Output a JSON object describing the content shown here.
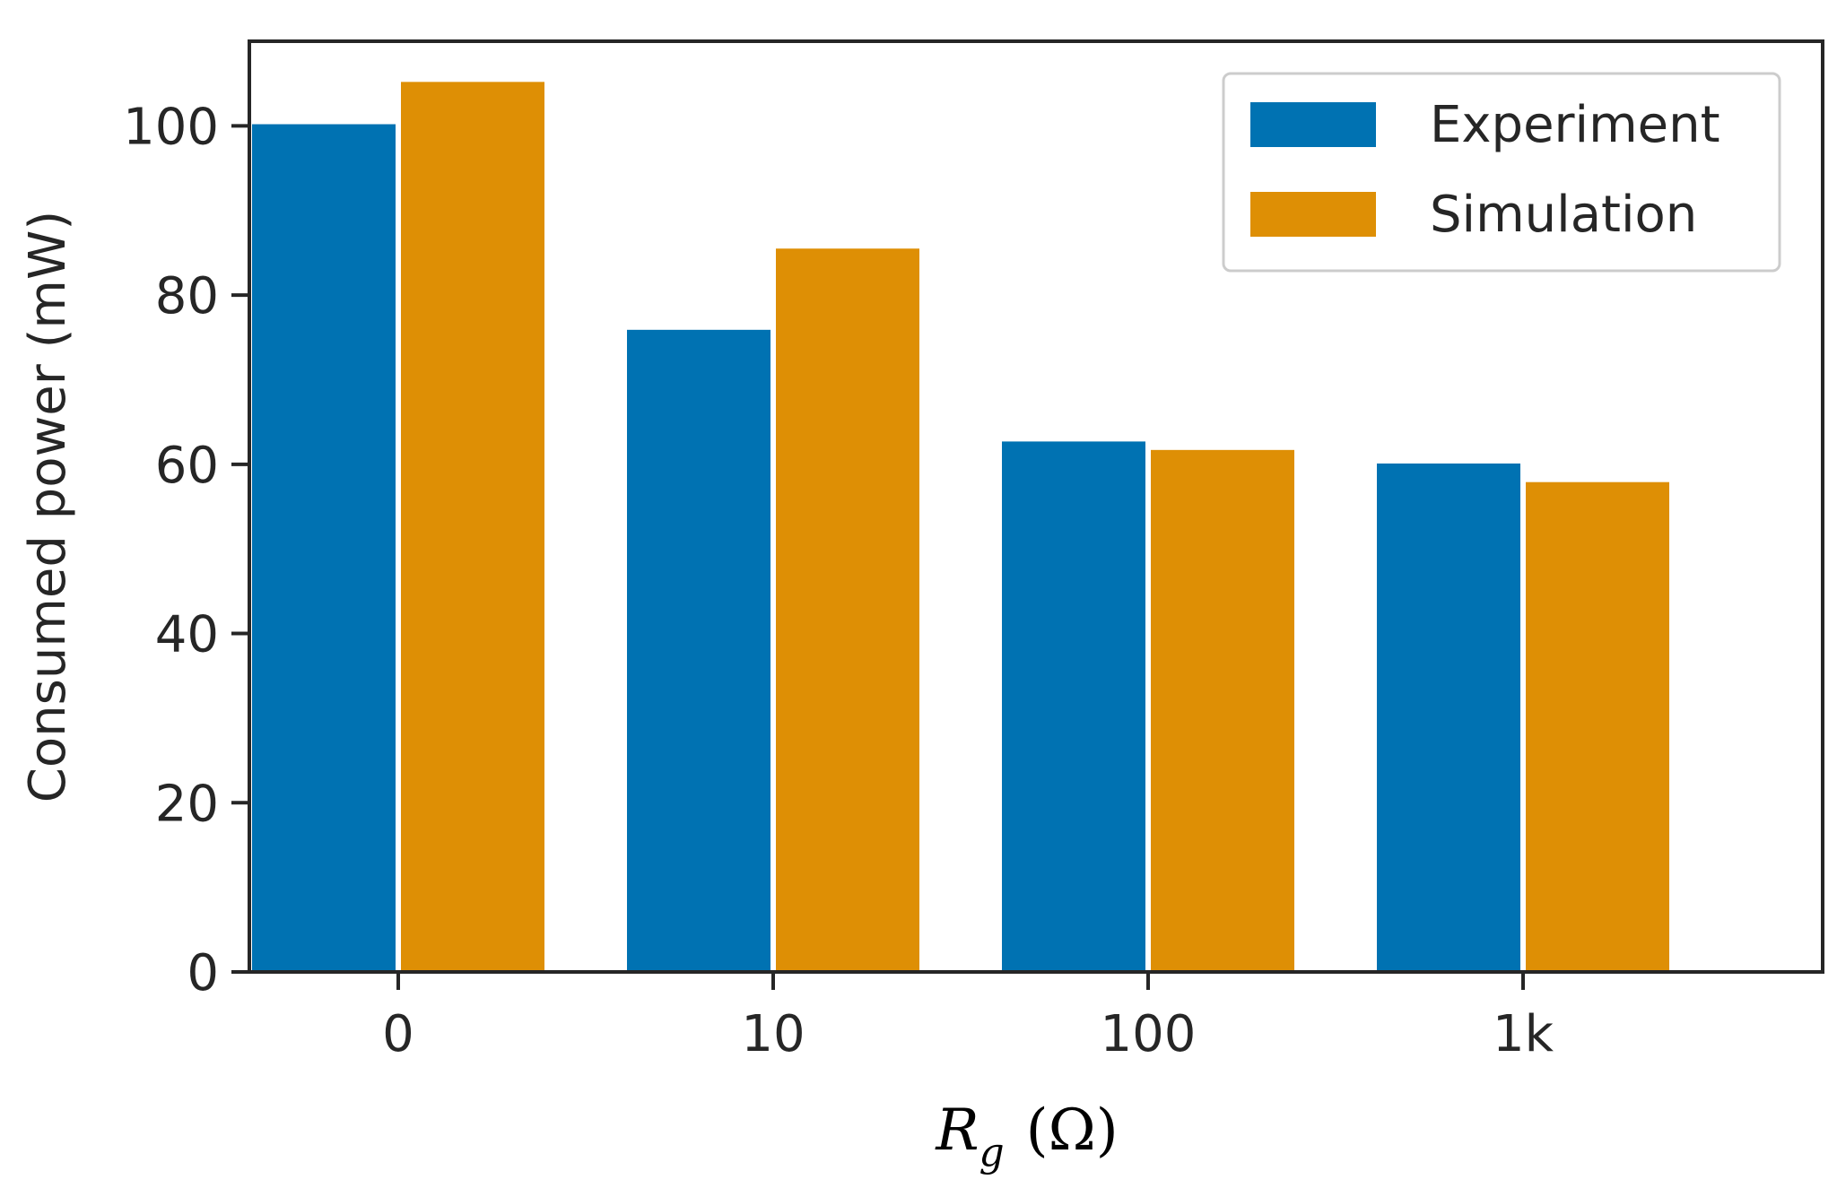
{
  "chart_data": {
    "type": "bar",
    "categories": [
      "0",
      "10",
      "100",
      "1k"
    ],
    "series": [
      {
        "name": "Experiment",
        "color": "#0072b2",
        "values": [
          100.3,
          76.0,
          62.8,
          60.2
        ]
      },
      {
        "name": "Simulation",
        "color": "#de8f05",
        "values": [
          105.3,
          85.6,
          61.8,
          58.0
        ]
      }
    ],
    "ylabel": "Consumed power (mW)",
    "xlabel": {
      "symbol": "R",
      "subscript": "g",
      "unit": "(Ω)"
    },
    "ylim": [
      0,
      110
    ],
    "yticks": [
      0,
      20,
      40,
      60,
      80,
      100
    ],
    "grid": false,
    "legend_position": "top-right"
  }
}
